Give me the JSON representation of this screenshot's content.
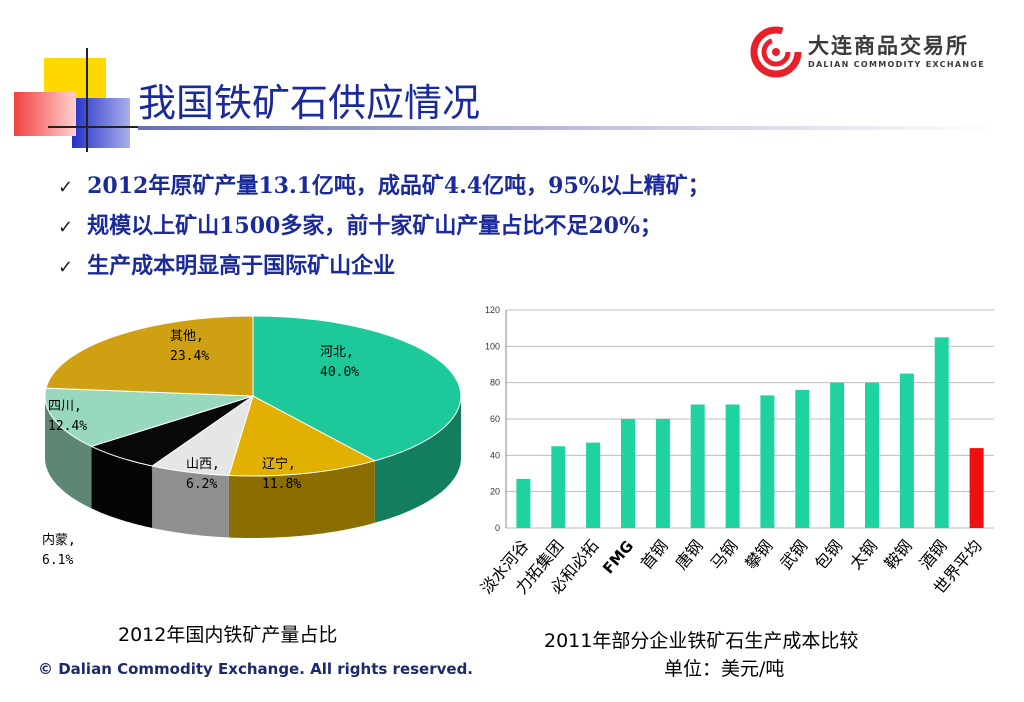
{
  "header": {
    "title": "我国铁矿石供应情况",
    "logo_cn": "大连商品交易所",
    "logo_en": "DALIAN COMMODITY EXCHANGE"
  },
  "bullets": [
    {
      "icon": "check-icon",
      "text": "2012年原矿产量13.1亿吨，成品矿4.4亿吨，95%以上精矿；"
    },
    {
      "icon": "check-icon",
      "text": "规模以上矿山1500多家，前十家矿山产量占比不足20%；"
    },
    {
      "icon": "check-icon",
      "text": "生产成本明显高于国际矿山企业"
    }
  ],
  "captions": {
    "pie": "2012年国内铁矿产量占比",
    "bar_line1": "2011年部分企业铁矿石生产成本比较",
    "bar_line2": "单位：美元/吨"
  },
  "footer": {
    "copyright": "© Dalian Commodity Exchange. All rights reserved."
  },
  "colors": {
    "title": "#1a2a9a",
    "accent_red": "#e8202a",
    "bar": "#1fd3a0",
    "bar_highlight": "#ee1111"
  },
  "chart_data": [
    {
      "type": "pie",
      "title": "2012年国内铁矿产量占比",
      "slices": [
        {
          "label": "河北",
          "value": 40.0,
          "display": "40.0%",
          "color": "#1dc99a"
        },
        {
          "label": "辽宁",
          "value": 11.8,
          "display": "11.8%",
          "color": "#e2b000"
        },
        {
          "label": "山西",
          "value": 6.2,
          "display": "6.2%",
          "color": "#e6e6e6"
        },
        {
          "label": "内蒙",
          "value": 6.1,
          "display": "6.1%",
          "color": "#080808"
        },
        {
          "label": "四川",
          "value": 12.4,
          "display": "12.4%",
          "color": "#98d8bc"
        },
        {
          "label": "其他",
          "value": 23.4,
          "display": "23.4%",
          "color": "#cfa112"
        }
      ]
    },
    {
      "type": "bar",
      "title": "2011年部分企业铁矿石生产成本比较",
      "subtitle": "单位：美元/吨",
      "categories": [
        "淡水河谷",
        "力拓集团",
        "必和必拓",
        "FMG",
        "首钢",
        "唐钢",
        "马钢",
        "攀钢",
        "武钢",
        "包钢",
        "太钢",
        "鞍钢",
        "酒钢",
        "世界平均"
      ],
      "values": [
        27,
        45,
        47,
        60,
        60,
        68,
        68,
        73,
        76,
        80,
        80,
        85,
        105,
        44
      ],
      "highlight_index": 13,
      "ylim": [
        0,
        120
      ],
      "yticks": [
        0,
        20,
        40,
        60,
        80,
        100,
        120
      ],
      "grid": true
    }
  ]
}
